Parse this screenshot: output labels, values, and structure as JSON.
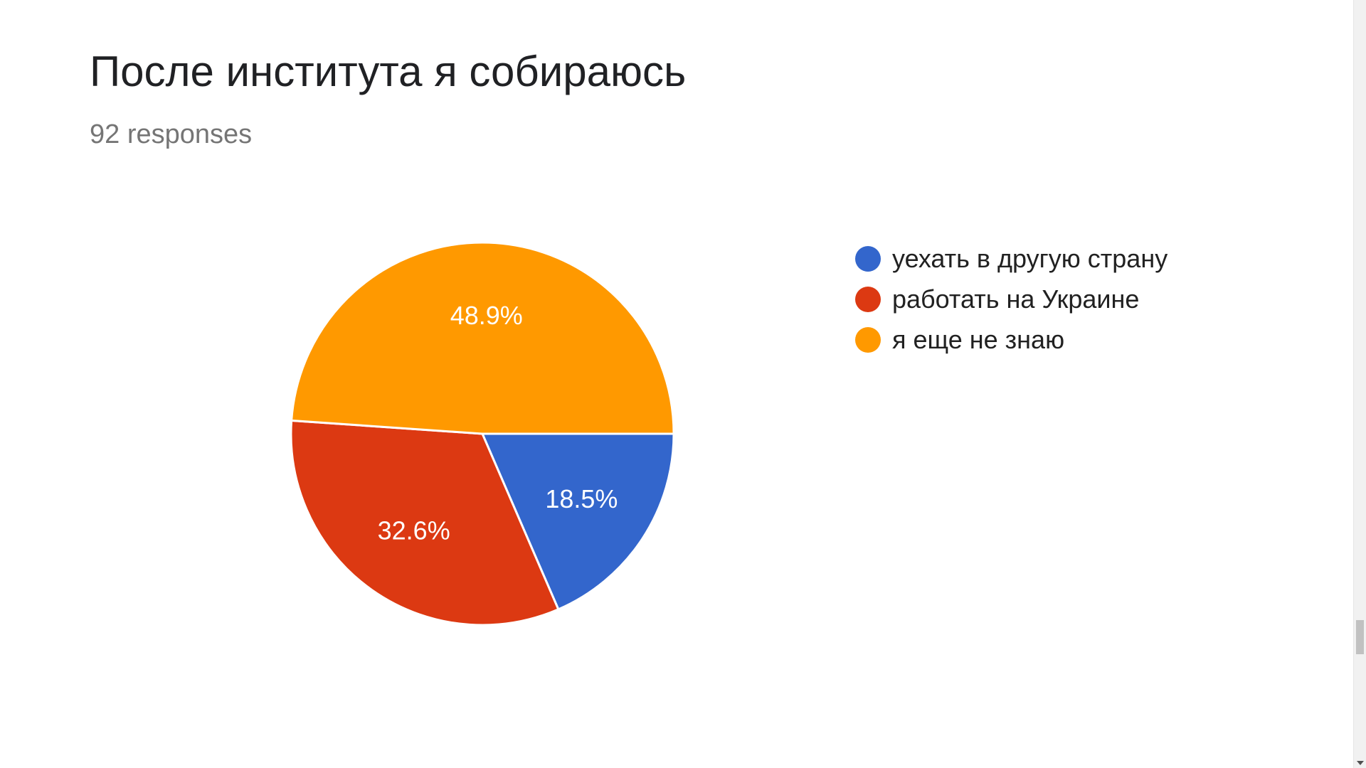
{
  "title": "После института я собираюсь",
  "subtitle": "92 responses",
  "chart_data": {
    "type": "pie",
    "categories": [
      "уехать в другую страну",
      "работать на Украине",
      "я еще не знаю"
    ],
    "values": [
      18.5,
      32.6,
      48.9
    ],
    "labels": [
      "18.5%",
      "32.6%",
      "48.9%"
    ],
    "colors": [
      "#3366cc",
      "#dc3912",
      "#ff9900"
    ],
    "legend_position": "right"
  }
}
